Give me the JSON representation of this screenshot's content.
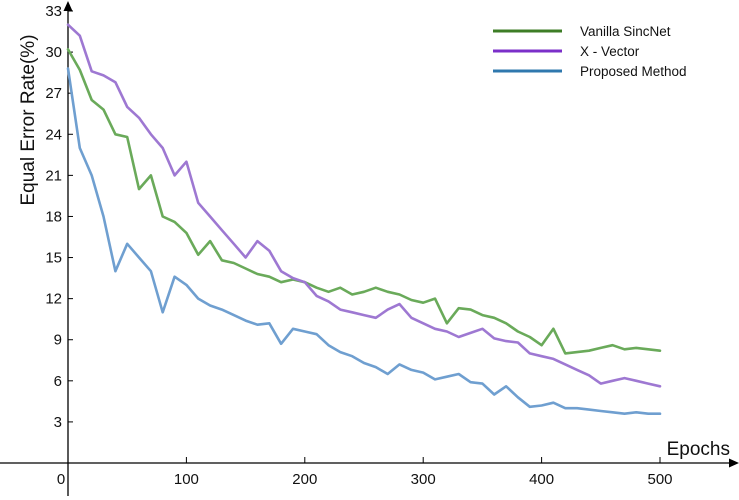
{
  "chart_data": {
    "type": "line",
    "xlabel": "Epochs",
    "ylabel": "Equal Error Rate(%)",
    "xlim": [
      0,
      500
    ],
    "ylim": [
      0,
      33
    ],
    "x_ticks": [
      0,
      100,
      200,
      300,
      400,
      500
    ],
    "y_ticks": [
      3,
      6,
      9,
      12,
      15,
      18,
      21,
      24,
      27,
      30,
      33
    ],
    "grid": false,
    "legend_position": "top-right",
    "series": [
      {
        "name": "Vanilla SincNet",
        "color": "#6aaa5a",
        "legend_color": "#3d7d26",
        "x": [
          0,
          10,
          20,
          30,
          40,
          50,
          60,
          70,
          80,
          90,
          100,
          110,
          120,
          130,
          140,
          150,
          160,
          170,
          180,
          190,
          200,
          210,
          220,
          230,
          240,
          250,
          260,
          270,
          280,
          290,
          300,
          310,
          320,
          330,
          340,
          350,
          360,
          370,
          380,
          390,
          400,
          410,
          420,
          430,
          440,
          450,
          460,
          470,
          480,
          490,
          500
        ],
        "values": [
          30.2,
          28.7,
          26.5,
          25.8,
          24.0,
          23.8,
          20.0,
          21.0,
          18.0,
          17.6,
          16.8,
          15.2,
          16.2,
          14.8,
          14.6,
          14.2,
          13.8,
          13.6,
          13.2,
          13.4,
          13.2,
          12.8,
          12.5,
          12.8,
          12.3,
          12.5,
          12.8,
          12.5,
          12.3,
          11.9,
          11.7,
          12.0,
          10.2,
          11.3,
          11.2,
          10.8,
          10.6,
          10.2,
          9.6,
          9.2,
          8.6,
          9.8,
          8.0,
          8.1,
          8.2,
          8.4,
          8.6,
          8.3,
          8.4,
          8.3,
          8.2
        ]
      },
      {
        "name": "X - Vector",
        "color": "#9e78d2",
        "legend_color": "#7b2fc9",
        "x": [
          0,
          10,
          20,
          30,
          40,
          50,
          60,
          70,
          80,
          90,
          100,
          110,
          120,
          130,
          140,
          150,
          160,
          170,
          180,
          190,
          200,
          210,
          220,
          230,
          240,
          250,
          260,
          270,
          280,
          290,
          300,
          310,
          320,
          330,
          340,
          350,
          360,
          370,
          380,
          390,
          400,
          410,
          420,
          430,
          440,
          450,
          460,
          470,
          480,
          490,
          500
        ],
        "values": [
          32.0,
          31.2,
          28.6,
          28.3,
          27.8,
          26.0,
          25.2,
          24.0,
          23.0,
          21.0,
          22.0,
          19.0,
          18.0,
          17.0,
          16.0,
          15.0,
          16.2,
          15.5,
          14.0,
          13.5,
          13.2,
          12.2,
          11.8,
          11.2,
          11.0,
          10.8,
          10.6,
          11.2,
          11.6,
          10.6,
          10.2,
          9.8,
          9.6,
          9.2,
          9.5,
          9.8,
          9.1,
          8.9,
          8.8,
          8.0,
          7.8,
          7.6,
          7.2,
          6.8,
          6.4,
          5.8,
          6.0,
          6.2,
          6.0,
          5.8,
          5.6
        ]
      },
      {
        "name": "Proposed Method",
        "color": "#6f9fd0",
        "legend_color": "#2f78ae",
        "x": [
          0,
          10,
          20,
          30,
          40,
          50,
          60,
          70,
          80,
          90,
          100,
          110,
          120,
          130,
          140,
          150,
          160,
          170,
          180,
          190,
          200,
          210,
          220,
          230,
          240,
          250,
          260,
          270,
          280,
          290,
          300,
          310,
          320,
          330,
          340,
          350,
          360,
          370,
          380,
          390,
          400,
          410,
          420,
          430,
          440,
          450,
          460,
          470,
          480,
          490,
          500
        ],
        "values": [
          28.8,
          23.0,
          21.0,
          18.0,
          14.0,
          16.0,
          15.0,
          14.0,
          11.0,
          13.6,
          13.0,
          12.0,
          11.5,
          11.2,
          10.8,
          10.4,
          10.1,
          10.2,
          8.7,
          9.8,
          9.6,
          9.4,
          8.6,
          8.1,
          7.8,
          7.3,
          7.0,
          6.5,
          7.2,
          6.8,
          6.6,
          6.1,
          6.3,
          6.5,
          5.9,
          5.8,
          5.0,
          5.6,
          4.8,
          4.1,
          4.2,
          4.4,
          4.0,
          4.0,
          3.9,
          3.8,
          3.7,
          3.6,
          3.7,
          3.6,
          3.6
        ]
      }
    ]
  }
}
